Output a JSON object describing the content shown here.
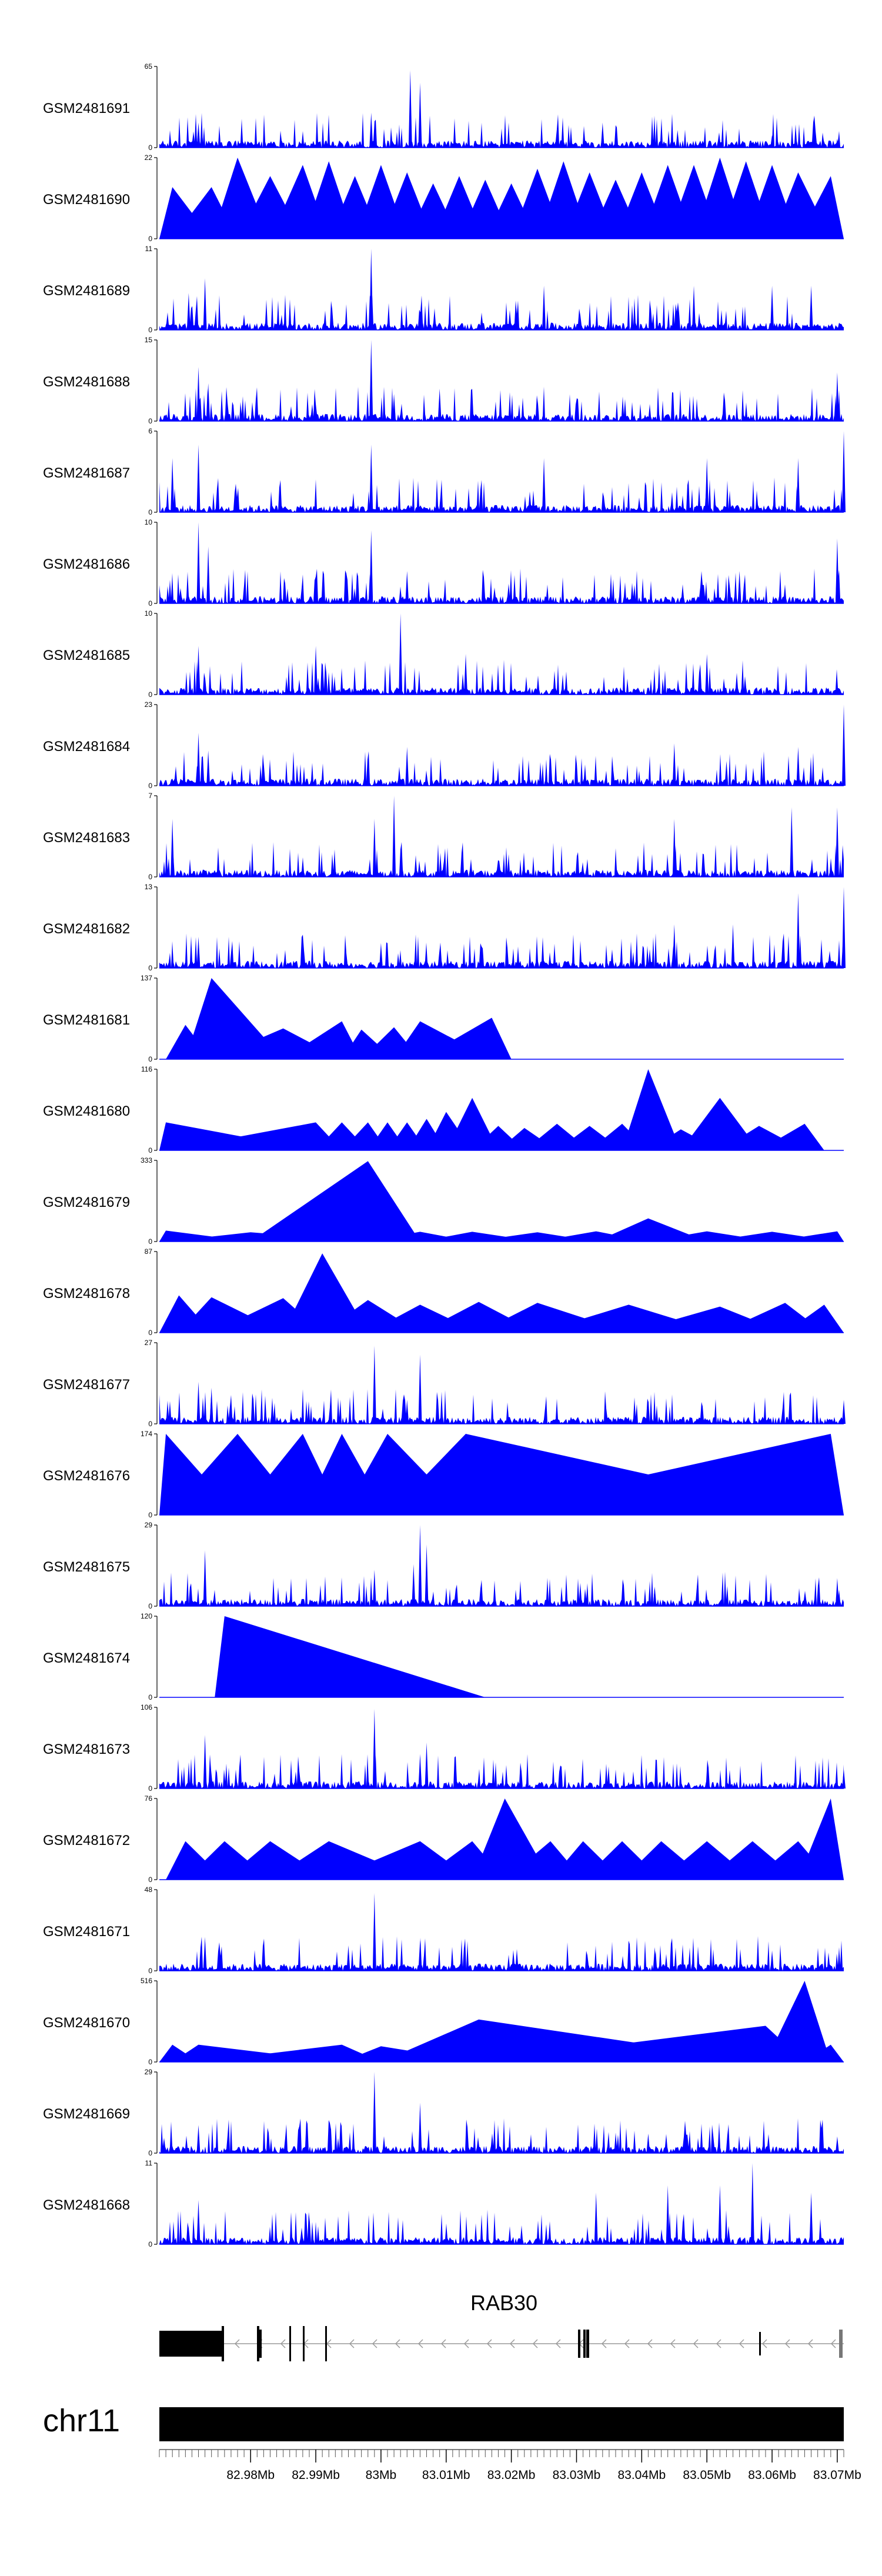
{
  "chart_data": {
    "type": "area",
    "title": "",
    "genome": "chr11",
    "x_range_mb": [
      82.966,
      83.071
    ],
    "x_tick_values_mb": [
      82.98,
      82.99,
      83.0,
      83.01,
      83.02,
      83.03,
      83.04,
      83.05,
      83.06,
      83.07
    ],
    "x_tick_labels": [
      "82.98Mb",
      "82.99Mb",
      "83Mb",
      "83.01Mb",
      "83.02Mb",
      "83.03Mb",
      "83.04Mb",
      "83.05Mb",
      "83.06Mb",
      "83.07Mb"
    ],
    "ymin_label": "0",
    "series_color": "#0000ff",
    "gene": {
      "name": "RAB30",
      "strand": "-",
      "start_mb": 82.966,
      "end_mb": 83.071
    },
    "tracks": [
      {
        "name": "GSM2481691",
        "ymax": 65,
        "ymax_label": "65",
        "style": "dense",
        "peaks": [
          {
            "x": 83.0045,
            "v": 62
          },
          {
            "x": 83.006,
            "v": 52
          },
          {
            "x": 82.9985,
            "v": 28
          },
          {
            "x": 82.972,
            "v": 20
          },
          {
            "x": 82.9725,
            "v": 16
          },
          {
            "x": 83.034,
            "v": 20
          },
          {
            "x": 83.0455,
            "v": 14
          },
          {
            "x": 83.06,
            "v": 10
          },
          {
            "x": 83.07,
            "v": 7
          }
        ]
      },
      {
        "name": "GSM2481690",
        "ymax": 22,
        "ymax_label": "22",
        "style": "sparse",
        "peaks": [
          {
            "x": 82.968,
            "v": 14
          },
          {
            "x": 82.974,
            "v": 14
          },
          {
            "x": 82.978,
            "v": 22
          },
          {
            "x": 82.983,
            "v": 17
          },
          {
            "x": 82.988,
            "v": 20
          },
          {
            "x": 82.992,
            "v": 21
          },
          {
            "x": 82.996,
            "v": 17
          },
          {
            "x": 83.0,
            "v": 20
          },
          {
            "x": 83.004,
            "v": 18
          },
          {
            "x": 83.008,
            "v": 15
          },
          {
            "x": 83.012,
            "v": 17
          },
          {
            "x": 83.016,
            "v": 16
          },
          {
            "x": 83.02,
            "v": 15
          },
          {
            "x": 83.024,
            "v": 19
          },
          {
            "x": 83.028,
            "v": 21
          },
          {
            "x": 83.032,
            "v": 18
          },
          {
            "x": 83.036,
            "v": 16
          },
          {
            "x": 83.04,
            "v": 18
          },
          {
            "x": 83.044,
            "v": 20
          },
          {
            "x": 83.048,
            "v": 20
          },
          {
            "x": 83.052,
            "v": 22
          },
          {
            "x": 83.056,
            "v": 21
          },
          {
            "x": 83.06,
            "v": 20
          },
          {
            "x": 83.064,
            "v": 18
          },
          {
            "x": 83.069,
            "v": 17
          }
        ]
      },
      {
        "name": "GSM2481689",
        "ymax": 11,
        "ymax_label": "11",
        "style": "dense",
        "peaks": [
          {
            "x": 82.9985,
            "v": 11
          },
          {
            "x": 82.973,
            "v": 7
          },
          {
            "x": 82.9705,
            "v": 5
          },
          {
            "x": 83.025,
            "v": 6
          },
          {
            "x": 83.048,
            "v": 6
          },
          {
            "x": 83.06,
            "v": 6
          },
          {
            "x": 83.066,
            "v": 6
          }
        ]
      },
      {
        "name": "GSM2481688",
        "ymax": 15,
        "ymax_label": "15",
        "style": "dense",
        "peaks": [
          {
            "x": 82.9985,
            "v": 15
          },
          {
            "x": 82.972,
            "v": 10
          },
          {
            "x": 82.9735,
            "v": 7
          },
          {
            "x": 83.002,
            "v": 5
          },
          {
            "x": 83.009,
            "v": 6
          },
          {
            "x": 83.07,
            "v": 9
          }
        ]
      },
      {
        "name": "GSM2481687",
        "ymax": 6,
        "ymax_label": "6",
        "style": "dense",
        "peaks": [
          {
            "x": 83.071,
            "v": 6
          },
          {
            "x": 82.972,
            "v": 5
          },
          {
            "x": 82.9985,
            "v": 5
          },
          {
            "x": 82.968,
            "v": 4
          },
          {
            "x": 83.025,
            "v": 4
          },
          {
            "x": 83.05,
            "v": 4
          },
          {
            "x": 83.064,
            "v": 4
          }
        ]
      },
      {
        "name": "GSM2481686",
        "ymax": 10,
        "ymax_label": "10",
        "style": "dense",
        "peaks": [
          {
            "x": 82.972,
            "v": 10
          },
          {
            "x": 82.9735,
            "v": 7
          },
          {
            "x": 82.9985,
            "v": 9
          },
          {
            "x": 83.07,
            "v": 8
          },
          {
            "x": 83.004,
            "v": 4
          },
          {
            "x": 83.055,
            "v": 4
          }
        ]
      },
      {
        "name": "GSM2481685",
        "ymax": 10,
        "ymax_label": "10",
        "style": "dense",
        "peaks": [
          {
            "x": 83.003,
            "v": 10
          },
          {
            "x": 82.972,
            "v": 6
          },
          {
            "x": 82.99,
            "v": 6
          },
          {
            "x": 83.013,
            "v": 5
          },
          {
            "x": 83.05,
            "v": 5
          }
        ]
      },
      {
        "name": "GSM2481684",
        "ymax": 23,
        "ymax_label": "23",
        "style": "dense",
        "peaks": [
          {
            "x": 82.972,
            "v": 15
          },
          {
            "x": 82.9735,
            "v": 10
          },
          {
            "x": 83.004,
            "v": 11
          },
          {
            "x": 83.045,
            "v": 12
          },
          {
            "x": 83.053,
            "v": 7
          },
          {
            "x": 83.064,
            "v": 11
          },
          {
            "x": 83.071,
            "v": 23
          }
        ]
      },
      {
        "name": "GSM2481683",
        "ymax": 7,
        "ymax_label": "7",
        "style": "dense",
        "peaks": [
          {
            "x": 83.002,
            "v": 7
          },
          {
            "x": 83.063,
            "v": 6
          },
          {
            "x": 83.07,
            "v": 6
          },
          {
            "x": 82.968,
            "v": 5
          },
          {
            "x": 82.999,
            "v": 5
          },
          {
            "x": 83.045,
            "v": 5
          }
        ]
      },
      {
        "name": "GSM2481682",
        "ymax": 13,
        "ymax_label": "13",
        "style": "dense",
        "peaks": [
          {
            "x": 83.064,
            "v": 12
          },
          {
            "x": 83.071,
            "v": 13
          },
          {
            "x": 83.045,
            "v": 7
          },
          {
            "x": 83.054,
            "v": 7
          },
          {
            "x": 82.972,
            "v": 5
          },
          {
            "x": 83.0,
            "v": 4
          }
        ]
      },
      {
        "name": "GSM2481681",
        "ymax": 137,
        "ymax_label": "137",
        "style": "sparse",
        "peaks": [
          {
            "x": 82.97,
            "v": 58
          },
          {
            "x": 82.974,
            "v": 137
          },
          {
            "x": 82.985,
            "v": 52
          },
          {
            "x": 82.994,
            "v": 64
          },
          {
            "x": 82.997,
            "v": 50
          },
          {
            "x": 83.002,
            "v": 54
          },
          {
            "x": 83.006,
            "v": 64
          },
          {
            "x": 83.017,
            "v": 70
          }
        ]
      },
      {
        "name": "GSM2481680",
        "ymax": 116,
        "ymax_label": "116",
        "style": "sparse",
        "peaks": [
          {
            "x": 82.967,
            "v": 40
          },
          {
            "x": 82.99,
            "v": 40
          },
          {
            "x": 82.994,
            "v": 40
          },
          {
            "x": 82.998,
            "v": 40
          },
          {
            "x": 83.001,
            "v": 40
          },
          {
            "x": 83.004,
            "v": 40
          },
          {
            "x": 83.007,
            "v": 45
          },
          {
            "x": 83.01,
            "v": 55
          },
          {
            "x": 83.014,
            "v": 75
          },
          {
            "x": 83.018,
            "v": 35
          },
          {
            "x": 83.022,
            "v": 32
          },
          {
            "x": 83.027,
            "v": 38
          },
          {
            "x": 83.032,
            "v": 35
          },
          {
            "x": 83.037,
            "v": 38
          },
          {
            "x": 83.041,
            "v": 116
          },
          {
            "x": 83.046,
            "v": 30
          },
          {
            "x": 83.052,
            "v": 75
          },
          {
            "x": 83.058,
            "v": 35
          },
          {
            "x": 83.065,
            "v": 38
          }
        ]
      },
      {
        "name": "GSM2481679",
        "ymax": 333,
        "ymax_label": "333",
        "style": "sparse",
        "peaks": [
          {
            "x": 82.967,
            "v": 45
          },
          {
            "x": 82.98,
            "v": 38
          },
          {
            "x": 82.998,
            "v": 330
          },
          {
            "x": 83.006,
            "v": 40
          },
          {
            "x": 83.014,
            "v": 40
          },
          {
            "x": 83.024,
            "v": 38
          },
          {
            "x": 83.033,
            "v": 42
          },
          {
            "x": 83.041,
            "v": 95
          },
          {
            "x": 83.05,
            "v": 42
          },
          {
            "x": 83.06,
            "v": 40
          },
          {
            "x": 83.07,
            "v": 42
          }
        ]
      },
      {
        "name": "GSM2481678",
        "ymax": 87,
        "ymax_label": "87",
        "style": "sparse",
        "peaks": [
          {
            "x": 82.969,
            "v": 40
          },
          {
            "x": 82.974,
            "v": 38
          },
          {
            "x": 82.985,
            "v": 37
          },
          {
            "x": 82.991,
            "v": 85
          },
          {
            "x": 82.998,
            "v": 35
          },
          {
            "x": 83.006,
            "v": 30
          },
          {
            "x": 83.015,
            "v": 33
          },
          {
            "x": 83.024,
            "v": 32
          },
          {
            "x": 83.038,
            "v": 30
          },
          {
            "x": 83.052,
            "v": 28
          },
          {
            "x": 83.062,
            "v": 32
          },
          {
            "x": 83.068,
            "v": 30
          }
        ]
      },
      {
        "name": "GSM2481677",
        "ymax": 27,
        "ymax_label": "27",
        "style": "dense",
        "peaks": [
          {
            "x": 82.999,
            "v": 26
          },
          {
            "x": 83.006,
            "v": 23
          },
          {
            "x": 82.972,
            "v": 14
          },
          {
            "x": 82.974,
            "v": 12
          },
          {
            "x": 83.004,
            "v": 8
          },
          {
            "x": 83.071,
            "v": 8
          }
        ]
      },
      {
        "name": "GSM2481676",
        "ymax": 174,
        "ymax_label": "174",
        "style": "sparse",
        "peaks": [
          {
            "x": 82.967,
            "v": 174
          },
          {
            "x": 82.978,
            "v": 174
          },
          {
            "x": 82.988,
            "v": 174
          },
          {
            "x": 82.994,
            "v": 174
          },
          {
            "x": 83.001,
            "v": 174
          },
          {
            "x": 83.013,
            "v": 174
          },
          {
            "x": 83.069,
            "v": 174
          }
        ]
      },
      {
        "name": "GSM2481675",
        "ymax": 29,
        "ymax_label": "29",
        "style": "dense",
        "peaks": [
          {
            "x": 83.006,
            "v": 29
          },
          {
            "x": 82.973,
            "v": 20
          },
          {
            "x": 82.999,
            "v": 13
          },
          {
            "x": 83.007,
            "v": 22
          },
          {
            "x": 83.005,
            "v": 15
          },
          {
            "x": 83.042,
            "v": 7
          },
          {
            "x": 83.07,
            "v": 10
          }
        ]
      },
      {
        "name": "GSM2481674",
        "ymax": 120,
        "ymax_label": "120",
        "style": "sparse",
        "peaks": [
          {
            "x": 82.976,
            "v": 120
          }
        ]
      },
      {
        "name": "GSM2481673",
        "ymax": 106,
        "ymax_label": "106",
        "style": "dense",
        "peaks": [
          {
            "x": 82.999,
            "v": 104
          },
          {
            "x": 82.973,
            "v": 70
          },
          {
            "x": 83.007,
            "v": 60
          },
          {
            "x": 83.006,
            "v": 45
          },
          {
            "x": 83.071,
            "v": 25
          }
        ]
      },
      {
        "name": "GSM2481672",
        "ymax": 76,
        "ymax_label": "76",
        "style": "sparse",
        "peaks": [
          {
            "x": 82.97,
            "v": 36
          },
          {
            "x": 82.976,
            "v": 36
          },
          {
            "x": 82.983,
            "v": 36
          },
          {
            "x": 82.992,
            "v": 36
          },
          {
            "x": 83.006,
            "v": 36
          },
          {
            "x": 83.014,
            "v": 36
          },
          {
            "x": 83.019,
            "v": 76
          },
          {
            "x": 83.026,
            "v": 36
          },
          {
            "x": 83.031,
            "v": 36
          },
          {
            "x": 83.037,
            "v": 36
          },
          {
            "x": 83.043,
            "v": 36
          },
          {
            "x": 83.05,
            "v": 36
          },
          {
            "x": 83.057,
            "v": 36
          },
          {
            "x": 83.064,
            "v": 36
          },
          {
            "x": 83.069,
            "v": 76
          }
        ]
      },
      {
        "name": "GSM2481671",
        "ymax": 48,
        "ymax_label": "48",
        "style": "dense",
        "peaks": [
          {
            "x": 82.999,
            "v": 46
          },
          {
            "x": 82.973,
            "v": 20
          },
          {
            "x": 83.006,
            "v": 18
          },
          {
            "x": 82.995,
            "v": 15
          },
          {
            "x": 83.042,
            "v": 14
          },
          {
            "x": 83.06,
            "v": 12
          }
        ]
      },
      {
        "name": "GSM2481670",
        "ymax": 516,
        "ymax_label": "516",
        "style": "sparse",
        "peaks": [
          {
            "x": 82.968,
            "v": 110
          },
          {
            "x": 82.972,
            "v": 110
          },
          {
            "x": 82.994,
            "v": 110
          },
          {
            "x": 83.0,
            "v": 100
          },
          {
            "x": 83.015,
            "v": 270
          },
          {
            "x": 83.059,
            "v": 230
          },
          {
            "x": 83.065,
            "v": 516
          },
          {
            "x": 83.069,
            "v": 110
          }
        ]
      },
      {
        "name": "GSM2481669",
        "ymax": 29,
        "ymax_label": "29",
        "style": "dense",
        "peaks": [
          {
            "x": 82.999,
            "v": 29
          },
          {
            "x": 83.006,
            "v": 18
          },
          {
            "x": 82.972,
            "v": 10
          },
          {
            "x": 83.041,
            "v": 7
          },
          {
            "x": 83.07,
            "v": 6
          }
        ]
      },
      {
        "name": "GSM2481668",
        "ymax": 11,
        "ymax_label": "11",
        "style": "dense",
        "peaks": [
          {
            "x": 83.057,
            "v": 11
          },
          {
            "x": 83.044,
            "v": 8
          },
          {
            "x": 83.052,
            "v": 8
          },
          {
            "x": 83.033,
            "v": 7
          },
          {
            "x": 83.066,
            "v": 7
          },
          {
            "x": 82.972,
            "v": 6
          }
        ]
      }
    ]
  }
}
